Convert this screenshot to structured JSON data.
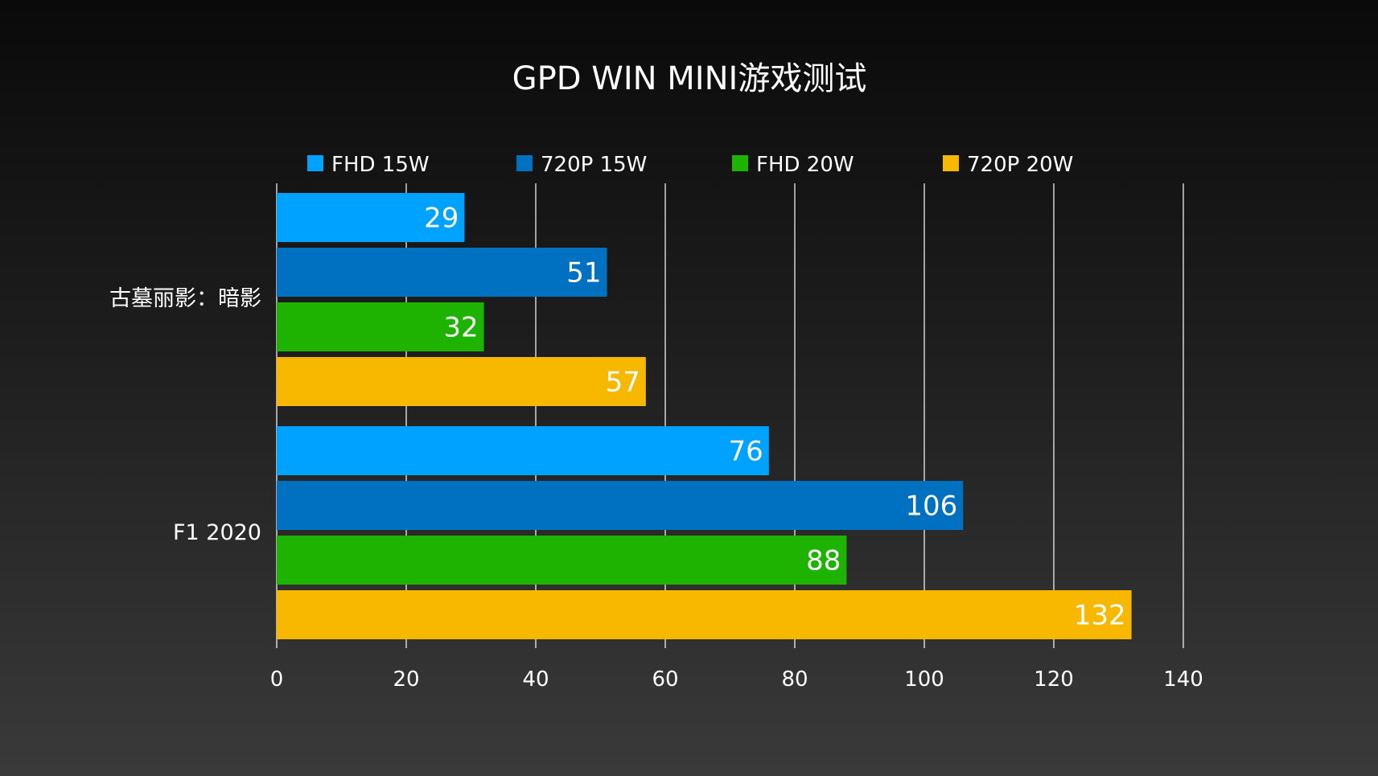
{
  "chart_data": {
    "type": "bar",
    "orientation": "horizontal",
    "title": "GPD WIN MINI游戏测试",
    "categories": [
      "古墓丽影：暗影",
      "F1 2020"
    ],
    "series": [
      {
        "name": "FHD 15W",
        "color": "#00a2ff",
        "values": [
          29,
          76
        ]
      },
      {
        "name": "720P 15W",
        "color": "#0070c0",
        "values": [
          51,
          106
        ]
      },
      {
        "name": "FHD 20W",
        "color": "#1db300",
        "values": [
          32,
          88
        ]
      },
      {
        "name": "720P 20W",
        "color": "#f8b800",
        "values": [
          57,
          132
        ]
      }
    ],
    "xlim": [
      0,
      140
    ],
    "xticks": [
      "0",
      "20",
      "40",
      "60",
      "80",
      "100",
      "120",
      "140"
    ],
    "grid": true,
    "legend_position": "top",
    "data_labels": true
  }
}
